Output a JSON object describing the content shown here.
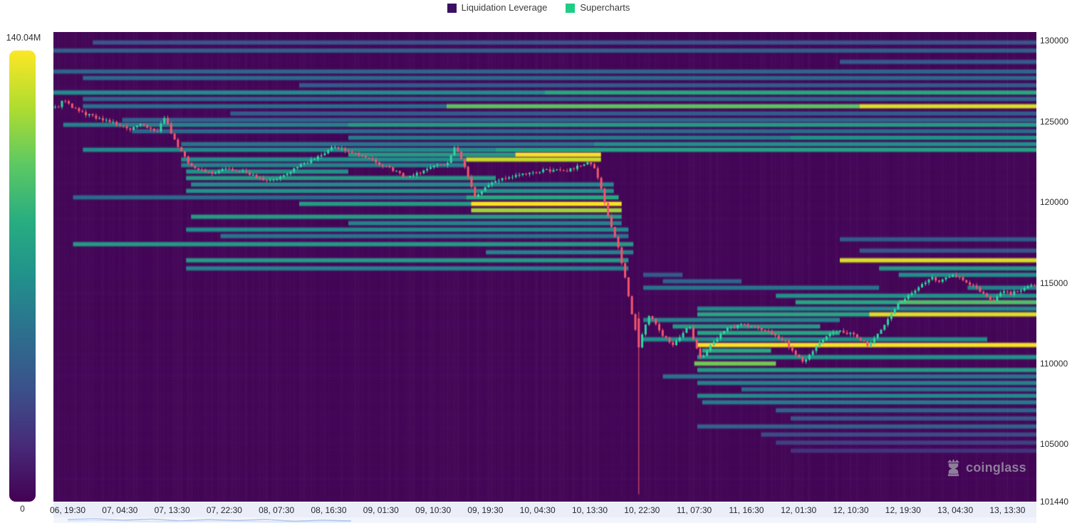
{
  "legend": {
    "items": [
      {
        "label": "Liquidation Leverage",
        "color": "#3b0f63"
      },
      {
        "label": "Supercharts",
        "color": "#1fce84"
      }
    ]
  },
  "colorbar": {
    "max_label": "140.04M",
    "min_label": "0",
    "stops": [
      [
        0,
        "#440154"
      ],
      [
        0.13,
        "#472c7a"
      ],
      [
        0.25,
        "#3b518b"
      ],
      [
        0.38,
        "#2c718e"
      ],
      [
        0.5,
        "#21918c"
      ],
      [
        0.62,
        "#27ad81"
      ],
      [
        0.75,
        "#5ec962"
      ],
      [
        0.87,
        "#addc30"
      ],
      [
        1,
        "#fde725"
      ]
    ]
  },
  "watermark": {
    "text": "coinglass"
  },
  "chart_data": {
    "type": "heatmap",
    "subtype": "liquidation-heatmap-with-candlesticks",
    "title": "",
    "legend_entries": [
      "Liquidation Leverage",
      "Supercharts"
    ],
    "colorbar_range": {
      "min": 0,
      "max": "140.04M"
    },
    "y_axis": {
      "range": [
        101440,
        130550
      ],
      "ticks": [
        {
          "label": "130000",
          "price": 130000
        },
        {
          "label": "125000",
          "price": 125000
        },
        {
          "label": "120000",
          "price": 120000
        },
        {
          "label": "115000",
          "price": 115000
        },
        {
          "label": "110000",
          "price": 110000
        },
        {
          "label": "105000",
          "price": 105000
        },
        {
          "label": "101440",
          "price": 101440
        }
      ]
    },
    "x_axis": {
      "ticks": [
        "06, 19:30",
        "07, 04:30",
        "07, 13:30",
        "07, 22:30",
        "08, 07:30",
        "08, 16:30",
        "09, 01:30",
        "09, 10:30",
        "09, 19:30",
        "10, 04:30",
        "10, 13:30",
        "10, 22:30",
        "11, 07:30",
        "11, 16:30",
        "12, 01:30",
        "12, 10:30",
        "12, 19:30",
        "13, 04:30",
        "13, 13:30"
      ]
    },
    "colors": {
      "up": "#2fd8a0",
      "down": "#f4566e",
      "bg": "#450659",
      "grid": "rgba(255,255,255,0.06)"
    },
    "candle_count": 288,
    "price_path": [
      [
        0.004,
        125900
      ],
      [
        0.008,
        126450
      ],
      [
        0.015,
        126000
      ],
      [
        0.025,
        125600
      ],
      [
        0.04,
        125300
      ],
      [
        0.06,
        124900
      ],
      [
        0.075,
        124500
      ],
      [
        0.09,
        124850
      ],
      [
        0.103,
        124300
      ],
      [
        0.112,
        125250
      ],
      [
        0.12,
        124000
      ],
      [
        0.13,
        123000
      ],
      [
        0.14,
        122100
      ],
      [
        0.16,
        121800
      ],
      [
        0.175,
        122150
      ],
      [
        0.19,
        121900
      ],
      [
        0.205,
        121600
      ],
      [
        0.22,
        121300
      ],
      [
        0.235,
        121750
      ],
      [
        0.25,
        122300
      ],
      [
        0.265,
        122700
      ],
      [
        0.285,
        123450
      ],
      [
        0.3,
        123200
      ],
      [
        0.315,
        122900
      ],
      [
        0.33,
        122400
      ],
      [
        0.345,
        122000
      ],
      [
        0.36,
        121500
      ],
      [
        0.375,
        121900
      ],
      [
        0.39,
        122400
      ],
      [
        0.4,
        122300
      ],
      [
        0.408,
        123400
      ],
      [
        0.418,
        122300
      ],
      [
        0.428,
        120300
      ],
      [
        0.44,
        121000
      ],
      [
        0.455,
        121400
      ],
      [
        0.475,
        121700
      ],
      [
        0.5,
        122000
      ],
      [
        0.52,
        121900
      ],
      [
        0.535,
        122250
      ],
      [
        0.545,
        122500
      ],
      [
        0.552,
        121900
      ],
      [
        0.558,
        120700
      ],
      [
        0.563,
        119400
      ],
      [
        0.568,
        118500
      ],
      [
        0.573,
        117600
      ],
      [
        0.578,
        116400
      ],
      [
        0.582,
        115300
      ],
      [
        0.586,
        113900
      ],
      [
        0.59,
        112700
      ],
      [
        0.596,
        111200
      ],
      [
        0.601,
        112100
      ],
      [
        0.607,
        113100
      ],
      [
        0.613,
        112400
      ],
      [
        0.62,
        111800
      ],
      [
        0.63,
        111100
      ],
      [
        0.64,
        111900
      ],
      [
        0.648,
        112300
      ],
      [
        0.654,
        111000
      ],
      [
        0.66,
        110300
      ],
      [
        0.67,
        111200
      ],
      [
        0.683,
        112100
      ],
      [
        0.7,
        112400
      ],
      [
        0.715,
        112250
      ],
      [
        0.73,
        111900
      ],
      [
        0.745,
        111400
      ],
      [
        0.757,
        110500
      ],
      [
        0.763,
        110100
      ],
      [
        0.772,
        110700
      ],
      [
        0.783,
        111400
      ],
      [
        0.793,
        111900
      ],
      [
        0.8,
        112000
      ],
      [
        0.81,
        111900
      ],
      [
        0.82,
        111600
      ],
      [
        0.83,
        111100
      ],
      [
        0.838,
        111700
      ],
      [
        0.848,
        112600
      ],
      [
        0.858,
        113500
      ],
      [
        0.868,
        114100
      ],
      [
        0.878,
        114600
      ],
      [
        0.888,
        115000
      ],
      [
        0.896,
        115300
      ],
      [
        0.904,
        115100
      ],
      [
        0.912,
        115350
      ],
      [
        0.92,
        115450
      ],
      [
        0.928,
        115100
      ],
      [
        0.936,
        114800
      ],
      [
        0.944,
        114500
      ],
      [
        0.952,
        114200
      ],
      [
        0.957,
        113800
      ],
      [
        0.962,
        114200
      ],
      [
        0.97,
        114550
      ],
      [
        0.976,
        114300
      ],
      [
        0.982,
        114500
      ],
      [
        0.99,
        114700
      ],
      [
        1.0,
        114850
      ]
    ],
    "crash_wick": {
      "f": 0.596,
      "open": 112800,
      "close": 111000,
      "high": 113200,
      "low": 101900
    },
    "bands": [
      {
        "p": 129900,
        "segs": [
          [
            0.04,
            1,
            0.28
          ]
        ]
      },
      {
        "p": 129400,
        "segs": [
          [
            0.0,
            1,
            0.32
          ]
        ]
      },
      {
        "p": 128700,
        "segs": [
          [
            0.8,
            1,
            0.3
          ]
        ]
      },
      {
        "p": 128100,
        "segs": [
          [
            0.0,
            1,
            0.33
          ]
        ]
      },
      {
        "p": 127700,
        "segs": [
          [
            0.03,
            1,
            0.35
          ]
        ]
      },
      {
        "p": 127250,
        "segs": [
          [
            0.25,
            1,
            0.3
          ]
        ]
      },
      {
        "p": 126800,
        "segs": [
          [
            0.0,
            0.5,
            0.5
          ],
          [
            0.5,
            1,
            0.62
          ]
        ]
      },
      {
        "p": 126400,
        "segs": [
          [
            0.03,
            1,
            0.33
          ]
        ]
      },
      {
        "p": 125950,
        "segs": [
          [
            0.03,
            0.4,
            0.38
          ],
          [
            0.4,
            0.82,
            0.75
          ],
          [
            0.82,
            1,
            0.95
          ]
        ]
      },
      {
        "p": 125500,
        "segs": [
          [
            0.18,
            1,
            0.3
          ]
        ]
      },
      {
        "p": 125100,
        "segs": [
          [
            0.07,
            1,
            0.33
          ]
        ]
      },
      {
        "p": 124800,
        "segs": [
          [
            0.01,
            0.3,
            0.45
          ],
          [
            0.3,
            1,
            0.55
          ]
        ]
      },
      {
        "p": 124400,
        "segs": [
          [
            0.08,
            1,
            0.35
          ]
        ]
      },
      {
        "p": 124000,
        "segs": [
          [
            0.3,
            0.75,
            0.42
          ],
          [
            0.75,
            1,
            0.52
          ]
        ]
      },
      {
        "p": 123600,
        "segs": [
          [
            0.13,
            0.55,
            0.4
          ],
          [
            0.55,
            1,
            0.5
          ]
        ]
      },
      {
        "p": 123250,
        "segs": [
          [
            0.03,
            0.45,
            0.48
          ],
          [
            0.45,
            1,
            0.58
          ]
        ]
      },
      {
        "p": 122950,
        "segs": [
          [
            0.3,
            0.47,
            0.55
          ],
          [
            0.47,
            0.557,
            1.0
          ]
        ]
      },
      {
        "p": 122650,
        "segs": [
          [
            0.13,
            0.42,
            0.5
          ],
          [
            0.42,
            0.557,
            0.92
          ]
        ]
      },
      {
        "p": 122300,
        "segs": [
          [
            0.13,
            0.42,
            0.45
          ]
        ]
      },
      {
        "p": 121900,
        "segs": [
          [
            0.135,
            0.3,
            0.52
          ]
        ]
      },
      {
        "p": 121500,
        "segs": [
          [
            0.135,
            0.45,
            0.55
          ]
        ]
      },
      {
        "p": 121100,
        "segs": [
          [
            0.14,
            0.57,
            0.48
          ]
        ]
      },
      {
        "p": 120700,
        "segs": [
          [
            0.135,
            0.57,
            0.52
          ]
        ]
      },
      {
        "p": 120300,
        "segs": [
          [
            0.02,
            0.42,
            0.35
          ],
          [
            0.42,
            0.575,
            0.62
          ]
        ]
      },
      {
        "p": 119900,
        "segs": [
          [
            0.25,
            0.425,
            0.55
          ],
          [
            0.425,
            0.578,
            1.0
          ]
        ]
      },
      {
        "p": 119500,
        "segs": [
          [
            0.425,
            0.578,
            0.85
          ]
        ]
      },
      {
        "p": 119100,
        "segs": [
          [
            0.14,
            0.578,
            0.55
          ]
        ]
      },
      {
        "p": 118700,
        "segs": [
          [
            0.3,
            0.578,
            0.45
          ]
        ]
      },
      {
        "p": 118300,
        "segs": [
          [
            0.135,
            0.585,
            0.48
          ]
        ]
      },
      {
        "p": 117900,
        "segs": [
          [
            0.17,
            0.585,
            0.4
          ]
        ]
      },
      {
        "p": 117700,
        "segs": [
          [
            0.8,
            1,
            0.3
          ]
        ]
      },
      {
        "p": 117400,
        "segs": [
          [
            0.02,
            0.59,
            0.55
          ]
        ]
      },
      {
        "p": 117000,
        "segs": [
          [
            0.82,
            1,
            0.28
          ]
        ]
      },
      {
        "p": 116900,
        "segs": [
          [
            0.44,
            0.59,
            0.45
          ]
        ]
      },
      {
        "p": 116400,
        "segs": [
          [
            0.135,
            0.585,
            0.55
          ],
          [
            0.8,
            1,
            0.95
          ]
        ]
      },
      {
        "p": 115900,
        "segs": [
          [
            0.135,
            0.585,
            0.45
          ],
          [
            0.84,
            1,
            0.55
          ]
        ]
      },
      {
        "p": 115500,
        "segs": [
          [
            0.6,
            0.64,
            0.3
          ],
          [
            0.86,
            1,
            0.5
          ]
        ]
      },
      {
        "p": 115100,
        "segs": [
          [
            0.62,
            0.7,
            0.33
          ]
        ]
      },
      {
        "p": 114700,
        "segs": [
          [
            0.6,
            0.84,
            0.4
          ],
          [
            0.93,
            1,
            0.45
          ]
        ]
      },
      {
        "p": 114200,
        "segs": [
          [
            0.735,
            1,
            0.52
          ]
        ]
      },
      {
        "p": 113800,
        "segs": [
          [
            0.755,
            0.86,
            0.6
          ],
          [
            0.86,
            1,
            0.72
          ]
        ]
      },
      {
        "p": 113400,
        "segs": [
          [
            0.655,
            1,
            0.48
          ]
        ]
      },
      {
        "p": 113050,
        "segs": [
          [
            0.655,
            0.83,
            0.6
          ],
          [
            0.83,
            1,
            0.95
          ]
        ]
      },
      {
        "p": 112700,
        "segs": [
          [
            0.6,
            0.8,
            0.45
          ]
        ]
      },
      {
        "p": 112300,
        "segs": [
          [
            0.63,
            0.78,
            0.55
          ]
        ]
      },
      {
        "p": 111900,
        "segs": [
          [
            0.655,
            0.8,
            0.6
          ]
        ]
      },
      {
        "p": 111500,
        "segs": [
          [
            0.6,
            0.95,
            0.5
          ]
        ]
      },
      {
        "p": 111150,
        "segs": [
          [
            0.655,
            1,
            1.0
          ]
        ]
      },
      {
        "p": 110800,
        "segs": [
          [
            0.66,
            0.73,
            0.62
          ]
        ]
      },
      {
        "p": 110400,
        "segs": [
          [
            0.655,
            1,
            0.52
          ]
        ]
      },
      {
        "p": 110000,
        "segs": [
          [
            0.652,
            0.735,
            0.78
          ]
        ]
      },
      {
        "p": 109600,
        "segs": [
          [
            0.655,
            1,
            0.55
          ]
        ]
      },
      {
        "p": 109200,
        "segs": [
          [
            0.62,
            1,
            0.4
          ]
        ]
      },
      {
        "p": 108800,
        "segs": [
          [
            0.655,
            1,
            0.45
          ]
        ]
      },
      {
        "p": 108400,
        "segs": [
          [
            0.7,
            1,
            0.38
          ]
        ]
      },
      {
        "p": 108000,
        "segs": [
          [
            0.655,
            1,
            0.48
          ]
        ]
      },
      {
        "p": 107600,
        "segs": [
          [
            0.66,
            1,
            0.42
          ]
        ]
      },
      {
        "p": 107100,
        "segs": [
          [
            0.735,
            1,
            0.33
          ]
        ]
      },
      {
        "p": 106600,
        "segs": [
          [
            0.75,
            1,
            0.28
          ]
        ]
      },
      {
        "p": 106100,
        "segs": [
          [
            0.655,
            1,
            0.33
          ]
        ]
      },
      {
        "p": 105600,
        "segs": [
          [
            0.72,
            1,
            0.24
          ]
        ]
      },
      {
        "p": 105100,
        "segs": [
          [
            0.735,
            1,
            0.2
          ]
        ]
      },
      {
        "p": 104600,
        "segs": [
          [
            0.75,
            1,
            0.16
          ]
        ]
      }
    ]
  }
}
